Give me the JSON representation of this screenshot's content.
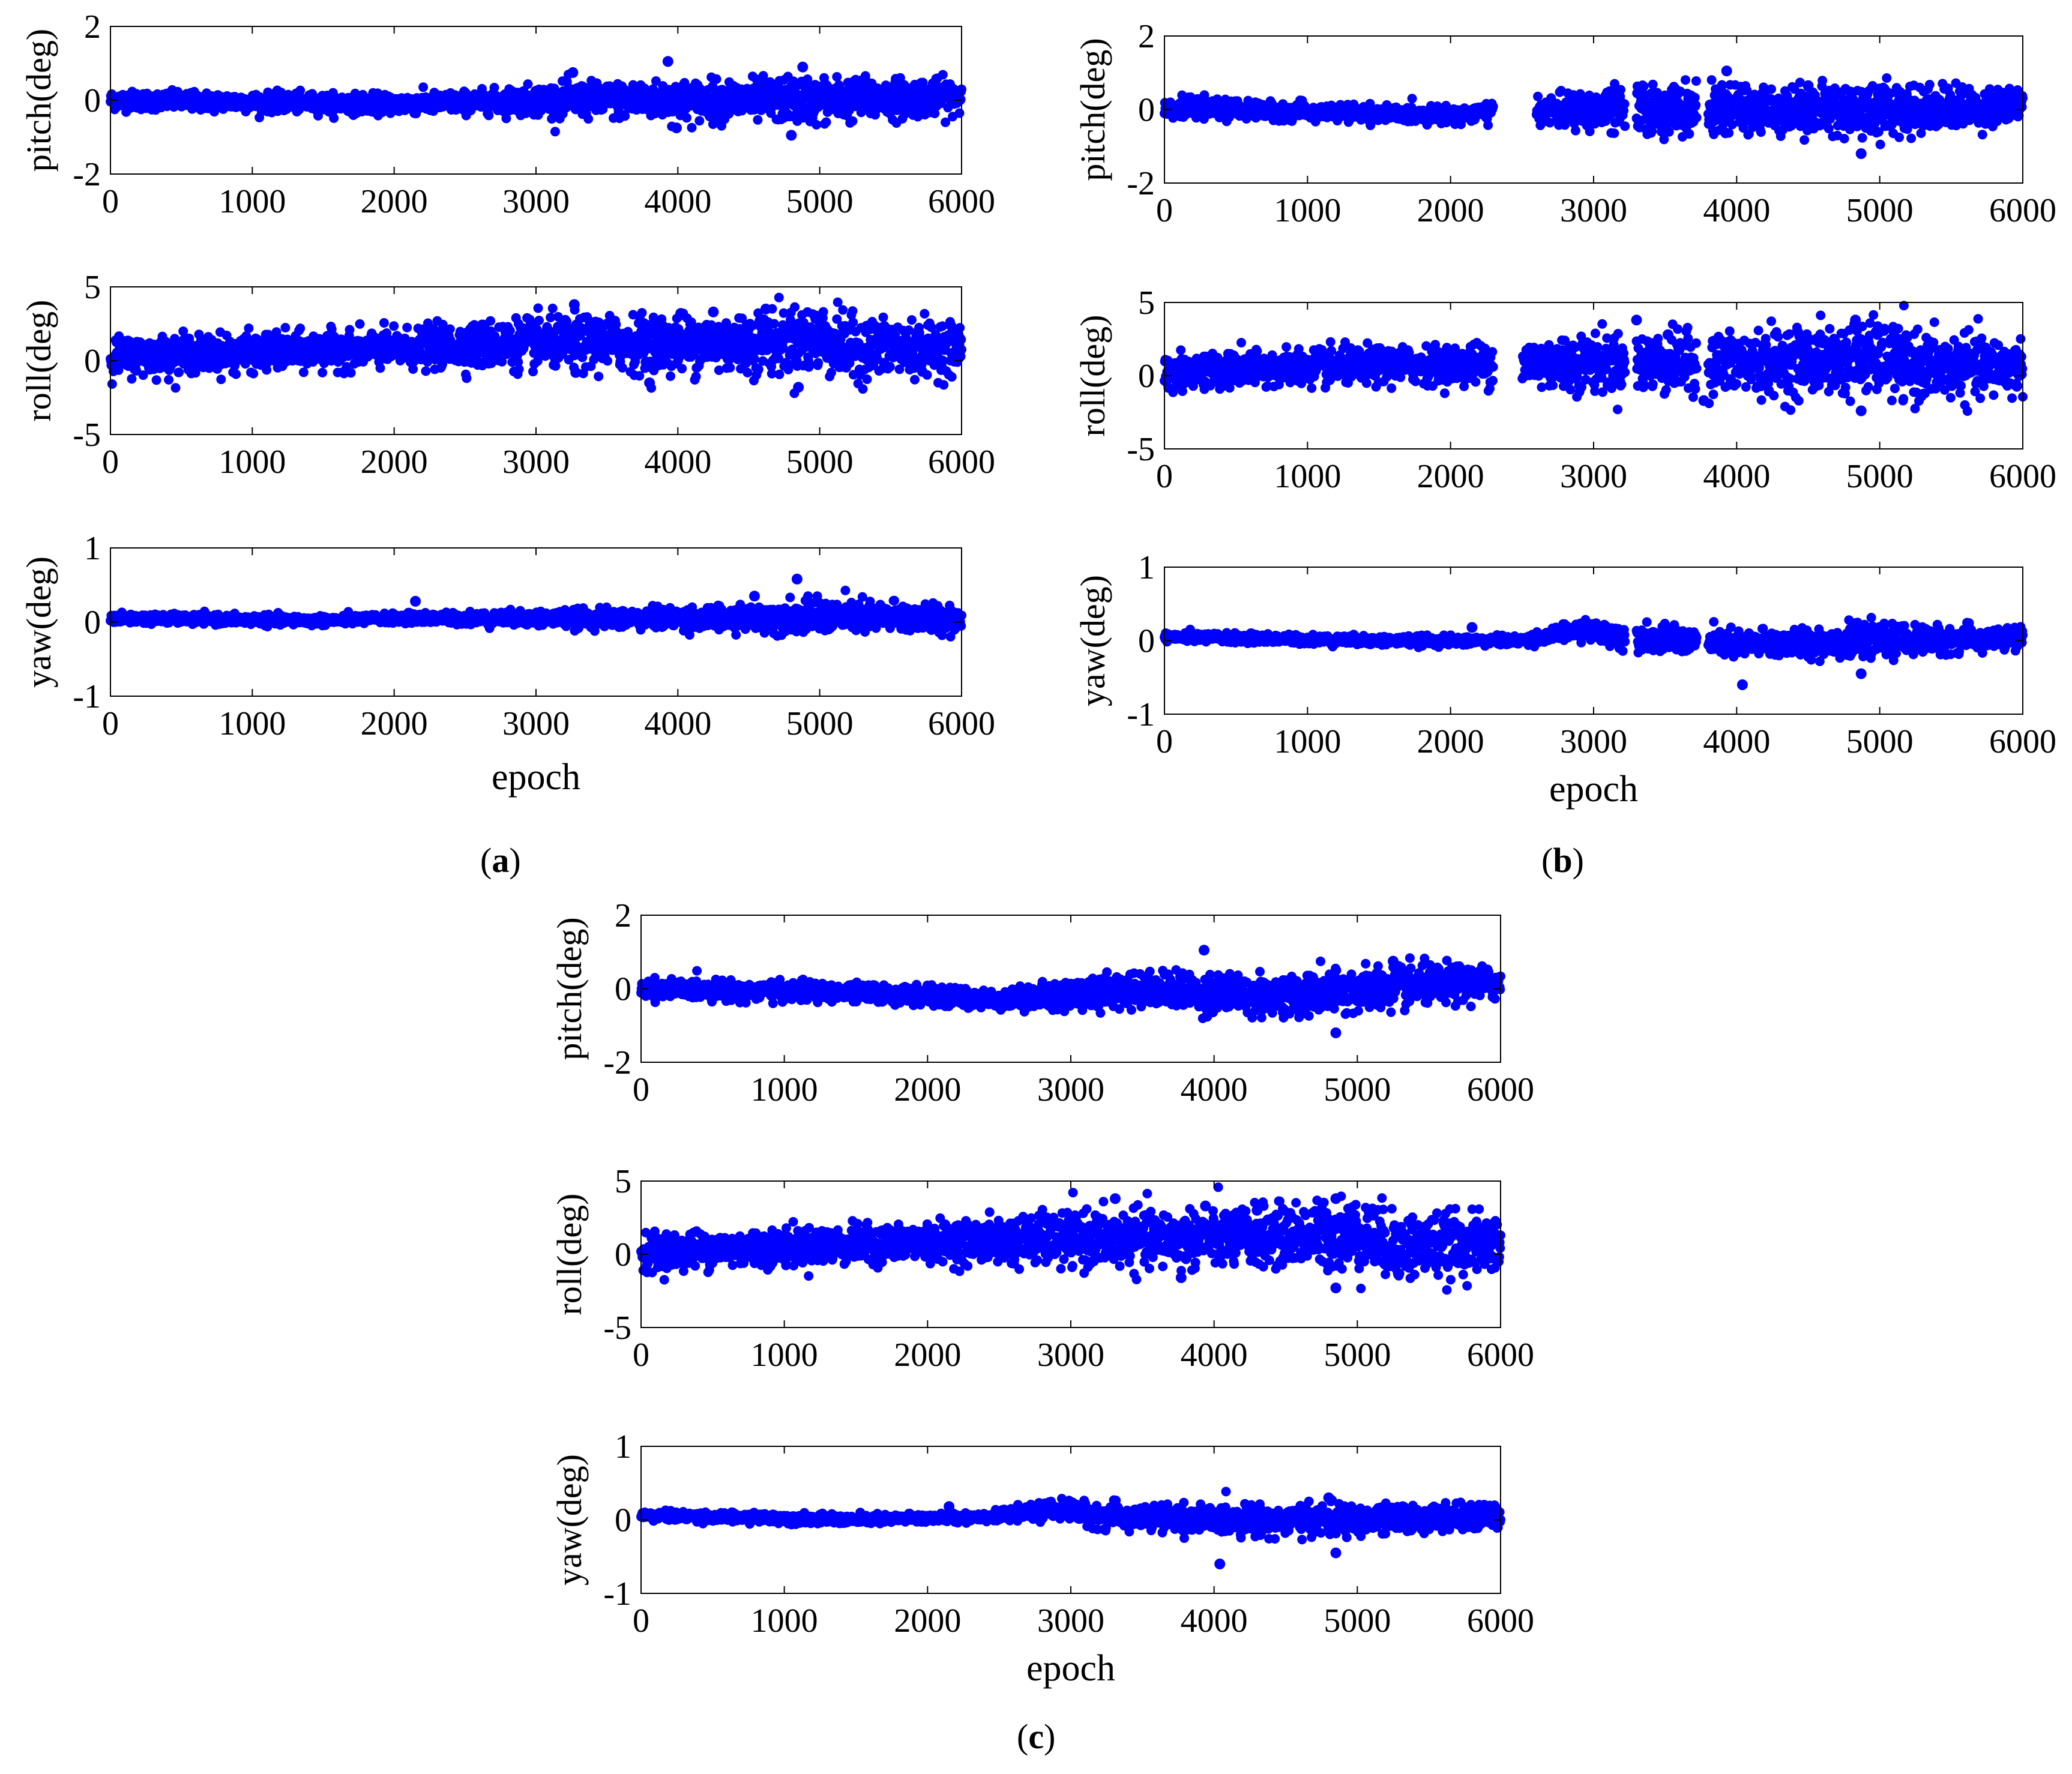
{
  "figure": {
    "panels": [
      {
        "id": "a",
        "label": "a"
      },
      {
        "id": "b",
        "label": "b"
      },
      {
        "id": "c",
        "label": "c"
      }
    ]
  },
  "chart_data": [
    {
      "panel": "a",
      "type": "scatter",
      "marker_color": "#0000ff",
      "xlim": [
        0,
        6000
      ],
      "xticks": [
        0,
        1000,
        2000,
        3000,
        4000,
        5000,
        6000
      ],
      "xlabel": "epoch",
      "subplots": [
        {
          "ylabel": "pitch(deg)",
          "ylim": [
            -2,
            2
          ],
          "yticks": [
            -2,
            0,
            2
          ],
          "noise": [
            [
              0,
              0.12
            ],
            [
              1600,
              0.12
            ],
            [
              2600,
              0.14
            ],
            [
              3200,
              0.22
            ],
            [
              4000,
              0.25
            ],
            [
              5000,
              0.3
            ],
            [
              6000,
              0.22
            ]
          ],
          "trend": [
            [
              0,
              0.0
            ],
            [
              2000,
              -0.1
            ],
            [
              3000,
              0.0
            ],
            [
              5000,
              0.0
            ],
            [
              6000,
              0.1
            ]
          ],
          "outliers": [
            [
              3930,
              1.05
            ],
            [
              3990,
              -0.75
            ],
            [
              4800,
              -0.95
            ],
            [
              4880,
              0.9
            ],
            [
              3260,
              0.75
            ]
          ]
        },
        {
          "ylabel": "roll(deg)",
          "ylim": [
            -5,
            5
          ],
          "yticks": [
            -5,
            0,
            5
          ],
          "noise": [
            [
              0,
              0.6
            ],
            [
              2000,
              0.6
            ],
            [
              2800,
              0.8
            ],
            [
              4500,
              1.0
            ],
            [
              5000,
              1.1
            ],
            [
              6000,
              0.8
            ]
          ],
          "trend": [
            [
              0,
              0.3
            ],
            [
              2000,
              0.8
            ],
            [
              3000,
              1.2
            ],
            [
              4500,
              1.2
            ],
            [
              5000,
              1.5
            ],
            [
              5200,
              0.8
            ],
            [
              6000,
              0.9
            ]
          ],
          "outliers": [
            [
              3270,
              3.8
            ],
            [
              3280,
              -0.8
            ],
            [
              3800,
              -1.5
            ],
            [
              4850,
              -1.8
            ],
            [
              4020,
              3.2
            ],
            [
              4250,
              3.3
            ],
            [
              4620,
              3.5
            ]
          ]
        },
        {
          "ylabel": "yaw(deg)",
          "ylim": [
            -1,
            1
          ],
          "yticks": [
            -1,
            0,
            1
          ],
          "noise": [
            [
              0,
              0.03
            ],
            [
              2000,
              0.03
            ],
            [
              3000,
              0.05
            ],
            [
              4500,
              0.08
            ],
            [
              5000,
              0.11
            ],
            [
              6000,
              0.09
            ]
          ],
          "trend": [
            [
              0,
              0.05
            ],
            [
              1500,
              0.02
            ],
            [
              2000,
              0.05
            ],
            [
              3000,
              0.05
            ],
            [
              4500,
              0.05
            ],
            [
              5000,
              0.08
            ],
            [
              6000,
              0.05
            ]
          ],
          "outliers": [
            [
              4840,
              0.58
            ],
            [
              2150,
              0.28
            ],
            [
              4540,
              0.35
            ]
          ]
        }
      ]
    },
    {
      "panel": "b",
      "type": "scatter",
      "marker_color": "#0000ff",
      "xlim": [
        0,
        6000
      ],
      "xticks": [
        0,
        1000,
        2000,
        3000,
        4000,
        5000,
        6000
      ],
      "xlabel": "epoch",
      "subplots": [
        {
          "ylabel": "pitch(deg)",
          "ylim": [
            -2,
            2
          ],
          "yticks": [
            -2,
            0,
            2
          ],
          "noise": [
            [
              0,
              0.12
            ],
            [
              2000,
              0.1
            ],
            [
              2600,
              0.15
            ],
            [
              3300,
              0.35
            ],
            [
              4000,
              0.3
            ],
            [
              5000,
              0.35
            ],
            [
              6000,
              0.22
            ]
          ],
          "trend": [
            [
              0,
              0.05
            ],
            [
              1800,
              -0.15
            ],
            [
              2500,
              -0.05
            ],
            [
              3200,
              0.0
            ],
            [
              5000,
              0.0
            ],
            [
              6000,
              0.1
            ]
          ],
          "outliers": [
            [
              3930,
              1.05
            ],
            [
              4870,
              -1.2
            ],
            [
              4500,
              0.65
            ]
          ],
          "gaps": [
            [
              2300,
              2600
            ],
            [
              3220,
              3300
            ],
            [
              3720,
              3800
            ]
          ]
        },
        {
          "ylabel": "roll(deg)",
          "ylim": [
            -5,
            5
          ],
          "yticks": [
            -5,
            0,
            5
          ],
          "noise": [
            [
              0,
              0.6
            ],
            [
              2000,
              0.6
            ],
            [
              2700,
              0.9
            ],
            [
              3800,
              1.0
            ],
            [
              5000,
              1.2
            ],
            [
              6000,
              0.9
            ]
          ],
          "trend": [
            [
              0,
              0.3
            ],
            [
              2000,
              0.8
            ],
            [
              3000,
              0.9
            ],
            [
              4000,
              0.8
            ],
            [
              5000,
              1.2
            ],
            [
              5200,
              0.6
            ],
            [
              6000,
              0.6
            ]
          ],
          "outliers": [
            [
              3300,
              3.8
            ],
            [
              3770,
              -1.7
            ],
            [
              4870,
              -2.4
            ],
            [
              4830,
              3.8
            ],
            [
              5100,
              3.0
            ],
            [
              3520,
              2.8
            ]
          ],
          "gaps": [
            [
              2300,
              2500
            ],
            [
              3220,
              3300
            ],
            [
              3720,
              3800
            ]
          ]
        },
        {
          "ylabel": "yaw(deg)",
          "ylim": [
            -1,
            1
          ],
          "yticks": [
            -1,
            0,
            1
          ],
          "noise": [
            [
              0,
              0.03
            ],
            [
              2500,
              0.03
            ],
            [
              2900,
              0.06
            ],
            [
              3300,
              0.08
            ],
            [
              5000,
              0.1
            ],
            [
              6000,
              0.07
            ]
          ],
          "trend": [
            [
              0,
              0.05
            ],
            [
              1500,
              0.0
            ],
            [
              2500,
              0.0
            ],
            [
              2900,
              0.15
            ],
            [
              3250,
              0.05
            ],
            [
              4000,
              -0.05
            ],
            [
              5000,
              0.0
            ],
            [
              6000,
              0.03
            ]
          ],
          "outliers": [
            [
              4040,
              -0.6
            ],
            [
              4870,
              -0.45
            ],
            [
              2150,
              0.18
            ]
          ],
          "gaps": [
            [
              3220,
              3300
            ],
            [
              3720,
              3800
            ]
          ]
        }
      ]
    },
    {
      "panel": "c",
      "type": "scatter",
      "marker_color": "#0000ff",
      "xlim": [
        0,
        6000
      ],
      "xticks": [
        0,
        1000,
        2000,
        3000,
        4000,
        5000,
        6000
      ],
      "xlabel": "epoch",
      "subplots": [
        {
          "ylabel": "pitch(deg)",
          "ylim": [
            -2,
            2
          ],
          "yticks": [
            -2,
            0,
            2
          ],
          "noise": [
            [
              0,
              0.12
            ],
            [
              2500,
              0.12
            ],
            [
              3000,
              0.2
            ],
            [
              4000,
              0.25
            ],
            [
              5000,
              0.3
            ],
            [
              6000,
              0.22
            ]
          ],
          "trend": [
            [
              0,
              0.0
            ],
            [
              1500,
              -0.1
            ],
            [
              2500,
              -0.3
            ],
            [
              3500,
              0.0
            ],
            [
              4500,
              -0.2
            ],
            [
              5500,
              0.1
            ],
            [
              6000,
              0.15
            ]
          ],
          "outliers": [
            [
              3930,
              1.05
            ],
            [
              4850,
              -1.2
            ],
            [
              3950,
              -0.75
            ],
            [
              5250,
              0.75
            ]
          ]
        },
        {
          "ylabel": "roll(deg)",
          "ylim": [
            -5,
            5
          ],
          "yticks": [
            -5,
            0,
            5
          ],
          "noise": [
            [
              0,
              0.6
            ],
            [
              2000,
              0.6
            ],
            [
              3000,
              0.9
            ],
            [
              4500,
              1.0
            ],
            [
              5000,
              1.2
            ],
            [
              6000,
              0.9
            ]
          ],
          "trend": [
            [
              0,
              0.2
            ],
            [
              2000,
              0.8
            ],
            [
              3000,
              1.0
            ],
            [
              4000,
              1.1
            ],
            [
              5000,
              1.4
            ],
            [
              5300,
              0.5
            ],
            [
              6000,
              0.8
            ]
          ],
          "outliers": [
            [
              3310,
              3.8
            ],
            [
              3770,
              -1.6
            ],
            [
              4850,
              -2.3
            ],
            [
              4850,
              3.8
            ],
            [
              3940,
              3.3
            ],
            [
              4300,
              3.0
            ]
          ]
        },
        {
          "ylabel": "yaw(deg)",
          "ylim": [
            -1,
            1
          ],
          "yticks": [
            -1,
            0,
            1
          ],
          "noise": [
            [
              0,
              0.03
            ],
            [
              2500,
              0.03
            ],
            [
              2900,
              0.06
            ],
            [
              3200,
              0.08
            ],
            [
              5000,
              0.1
            ],
            [
              6000,
              0.07
            ]
          ],
          "trend": [
            [
              0,
              0.06
            ],
            [
              1500,
              0.0
            ],
            [
              2500,
              0.05
            ],
            [
              2950,
              0.15
            ],
            [
              3200,
              0.05
            ],
            [
              4000,
              0.0
            ],
            [
              5000,
              0.0
            ],
            [
              6000,
              0.05
            ]
          ],
          "outliers": [
            [
              4040,
              -0.6
            ],
            [
              4850,
              -0.45
            ],
            [
              2150,
              0.18
            ],
            [
              4800,
              0.3
            ]
          ]
        }
      ]
    }
  ]
}
